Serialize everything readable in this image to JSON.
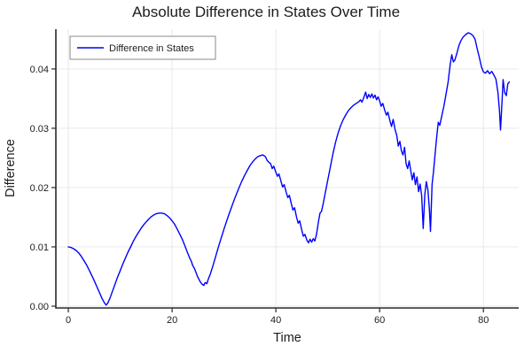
{
  "title": "Absolute Difference in States Over Time",
  "colors": {
    "line": "#0000ff",
    "grid": "#e6e6e6",
    "axis": "#2a2a2e",
    "text": "#1c1c1c",
    "background": "#ffffff",
    "legend_border": "#8a8a8a",
    "legend_fill": "#ffffff"
  },
  "chart_data": {
    "type": "line",
    "title": "Absolute Difference in States Over Time",
    "xlabel": "Time",
    "ylabel": "Difference",
    "xlim": [
      -2.4,
      86.8
    ],
    "ylim": [
      -0.0003,
      0.0467
    ],
    "grid": true,
    "x_ticks": {
      "values": [
        0,
        20,
        40,
        60,
        80
      ],
      "labels": [
        "0",
        "20",
        "40",
        "60",
        "80"
      ]
    },
    "y_ticks": {
      "values": [
        0,
        0.01,
        0.02,
        0.03,
        0.04
      ],
      "labels": [
        "0.00",
        "0.01",
        "0.02",
        "0.03",
        "0.04"
      ]
    },
    "legend": {
      "position": "top-left",
      "entries": [
        {
          "label": "Difference in States",
          "color": "#0000ff"
        }
      ]
    },
    "series": [
      {
        "name": "Difference in States",
        "color": "#0000ff",
        "points": [
          [
            0,
            0.01
          ],
          [
            0.5,
            0.0099
          ],
          [
            1,
            0.0097
          ],
          [
            1.5,
            0.0094
          ],
          [
            2,
            0.009
          ],
          [
            2.5,
            0.0084
          ],
          [
            3,
            0.0077
          ],
          [
            3.5,
            0.007
          ],
          [
            4,
            0.0061
          ],
          [
            4.5,
            0.0052
          ],
          [
            5,
            0.0043
          ],
          [
            5.5,
            0.0033
          ],
          [
            6,
            0.0023
          ],
          [
            6.5,
            0.0013
          ],
          [
            7,
            0.0005
          ],
          [
            7.3,
            0.0002
          ],
          [
            7.6,
            0.0005
          ],
          [
            8,
            0.0013
          ],
          [
            8.5,
            0.0025
          ],
          [
            9,
            0.0037
          ],
          [
            9.5,
            0.0049
          ],
          [
            10,
            0.006
          ],
          [
            10.5,
            0.0071
          ],
          [
            11,
            0.0081
          ],
          [
            11.5,
            0.0091
          ],
          [
            12,
            0.01
          ],
          [
            12.5,
            0.0109
          ],
          [
            13,
            0.0117
          ],
          [
            13.5,
            0.0124
          ],
          [
            14,
            0.0131
          ],
          [
            14.5,
            0.0137
          ],
          [
            15,
            0.0142
          ],
          [
            15.5,
            0.0147
          ],
          [
            16,
            0.0151
          ],
          [
            16.5,
            0.0154
          ],
          [
            17,
            0.0156
          ],
          [
            17.5,
            0.0157
          ],
          [
            18,
            0.0157
          ],
          [
            18.5,
            0.0156
          ],
          [
            19,
            0.0153
          ],
          [
            19.5,
            0.0149
          ],
          [
            20,
            0.0144
          ],
          [
            20.5,
            0.0138
          ],
          [
            21,
            0.013
          ],
          [
            21.5,
            0.0121
          ],
          [
            22,
            0.0112
          ],
          [
            22.5,
            0.0101
          ],
          [
            23,
            0.009
          ],
          [
            23.4,
            0.0081
          ],
          [
            23.7,
            0.0076
          ],
          [
            24,
            0.0068
          ],
          [
            24.3,
            0.0064
          ],
          [
            24.6,
            0.0057
          ],
          [
            24.9,
            0.005
          ],
          [
            25.2,
            0.0045
          ],
          [
            25.5,
            0.004
          ],
          [
            25.8,
            0.0037
          ],
          [
            26.1,
            0.0035
          ],
          [
            26.4,
            0.004
          ],
          [
            26.7,
            0.0038
          ],
          [
            27,
            0.0046
          ],
          [
            27.4,
            0.0055
          ],
          [
            27.8,
            0.0066
          ],
          [
            28.2,
            0.0078
          ],
          [
            28.6,
            0.009
          ],
          [
            29,
            0.0102
          ],
          [
            29.5,
            0.0116
          ],
          [
            30,
            0.013
          ],
          [
            30.5,
            0.0143
          ],
          [
            31,
            0.0156
          ],
          [
            31.5,
            0.0168
          ],
          [
            32,
            0.018
          ],
          [
            32.5,
            0.0191
          ],
          [
            33,
            0.0202
          ],
          [
            33.5,
            0.0212
          ],
          [
            34,
            0.0221
          ],
          [
            34.5,
            0.0229
          ],
          [
            35,
            0.0237
          ],
          [
            35.5,
            0.0243
          ],
          [
            36,
            0.0248
          ],
          [
            36.5,
            0.0252
          ],
          [
            37,
            0.0254
          ],
          [
            37.5,
            0.0255
          ],
          [
            38,
            0.0252
          ],
          [
            38.3,
            0.0246
          ],
          [
            38.6,
            0.0243
          ],
          [
            39,
            0.024
          ],
          [
            39.3,
            0.0232
          ],
          [
            39.6,
            0.0236
          ],
          [
            40,
            0.0226
          ],
          [
            40.3,
            0.0219
          ],
          [
            40.6,
            0.0223
          ],
          [
            41,
            0.021
          ],
          [
            41.3,
            0.0201
          ],
          [
            41.6,
            0.0205
          ],
          [
            42,
            0.0192
          ],
          [
            42.3,
            0.0183
          ],
          [
            42.6,
            0.0187
          ],
          [
            43,
            0.0172
          ],
          [
            43.3,
            0.0162
          ],
          [
            43.6,
            0.0166
          ],
          [
            44,
            0.015
          ],
          [
            44.3,
            0.014
          ],
          [
            44.6,
            0.0144
          ],
          [
            45,
            0.0128
          ],
          [
            45.3,
            0.0118
          ],
          [
            45.6,
            0.0121
          ],
          [
            46,
            0.0111
          ],
          [
            46.3,
            0.0107
          ],
          [
            46.6,
            0.0113
          ],
          [
            46.9,
            0.0108
          ],
          [
            47.2,
            0.0114
          ],
          [
            47.5,
            0.011
          ],
          [
            47.8,
            0.012
          ],
          [
            48,
            0.013
          ],
          [
            48.2,
            0.0142
          ],
          [
            48.5,
            0.0157
          ],
          [
            48.8,
            0.016
          ],
          [
            49.1,
            0.0172
          ],
          [
            49.5,
            0.019
          ],
          [
            50,
            0.0212
          ],
          [
            50.5,
            0.0235
          ],
          [
            51,
            0.0257
          ],
          [
            51.5,
            0.0276
          ],
          [
            52,
            0.0292
          ],
          [
            52.5,
            0.0305
          ],
          [
            53,
            0.0315
          ],
          [
            53.5,
            0.0323
          ],
          [
            54,
            0.033
          ],
          [
            54.5,
            0.0335
          ],
          [
            55,
            0.0339
          ],
          [
            55.5,
            0.0342
          ],
          [
            56,
            0.0345
          ],
          [
            56.3,
            0.0348
          ],
          [
            56.6,
            0.0344
          ],
          [
            57,
            0.0353
          ],
          [
            57.3,
            0.0361
          ],
          [
            57.6,
            0.035
          ],
          [
            57.9,
            0.0357
          ],
          [
            58.2,
            0.0352
          ],
          [
            58.5,
            0.0358
          ],
          [
            58.8,
            0.0351
          ],
          [
            59.1,
            0.0356
          ],
          [
            59.4,
            0.0348
          ],
          [
            59.7,
            0.0353
          ],
          [
            60,
            0.0346
          ],
          [
            60.3,
            0.0337
          ],
          [
            60.6,
            0.0342
          ],
          [
            61,
            0.033
          ],
          [
            61.3,
            0.0322
          ],
          [
            61.6,
            0.0327
          ],
          [
            62,
            0.0312
          ],
          [
            62.3,
            0.0303
          ],
          [
            62.6,
            0.0315
          ],
          [
            63,
            0.0297
          ],
          [
            63.3,
            0.0288
          ],
          [
            63.6,
            0.027
          ],
          [
            63.9,
            0.0278
          ],
          [
            64.2,
            0.0262
          ],
          [
            64.5,
            0.0255
          ],
          [
            64.8,
            0.0268
          ],
          [
            65.1,
            0.024
          ],
          [
            65.4,
            0.0232
          ],
          [
            65.7,
            0.0245
          ],
          [
            66,
            0.0228
          ],
          [
            66.3,
            0.0213
          ],
          [
            66.6,
            0.0225
          ],
          [
            66.9,
            0.0205
          ],
          [
            67.2,
            0.0218
          ],
          [
            67.5,
            0.0193
          ],
          [
            67.8,
            0.0206
          ],
          [
            68.1,
            0.0186
          ],
          [
            68.4,
            0.0131
          ],
          [
            68.7,
            0.0188
          ],
          [
            69,
            0.021
          ],
          [
            69.3,
            0.0196
          ],
          [
            69.6,
            0.0163
          ],
          [
            69.8,
            0.0126
          ],
          [
            70.1,
            0.0205
          ],
          [
            70.4,
            0.0228
          ],
          [
            70.7,
            0.0258
          ],
          [
            71,
            0.0285
          ],
          [
            71.3,
            0.031
          ],
          [
            71.6,
            0.0305
          ],
          [
            72,
            0.0322
          ],
          [
            72.4,
            0.0338
          ],
          [
            72.8,
            0.0358
          ],
          [
            73.2,
            0.0378
          ],
          [
            73.6,
            0.0408
          ],
          [
            73.9,
            0.0424
          ],
          [
            74.2,
            0.0412
          ],
          [
            74.5,
            0.0415
          ],
          [
            74.9,
            0.0427
          ],
          [
            75.3,
            0.044
          ],
          [
            75.7,
            0.0448
          ],
          [
            76.1,
            0.0454
          ],
          [
            76.6,
            0.0458
          ],
          [
            77.1,
            0.0461
          ],
          [
            77.6,
            0.0459
          ],
          [
            78,
            0.0456
          ],
          [
            78.4,
            0.045
          ],
          [
            78.8,
            0.0434
          ],
          [
            79.2,
            0.042
          ],
          [
            79.6,
            0.0404
          ],
          [
            80,
            0.0395
          ],
          [
            80.4,
            0.0393
          ],
          [
            80.8,
            0.0397
          ],
          [
            81.2,
            0.0392
          ],
          [
            81.6,
            0.0396
          ],
          [
            82,
            0.039
          ],
          [
            82.4,
            0.0383
          ],
          [
            82.8,
            0.036
          ],
          [
            83.1,
            0.033
          ],
          [
            83.3,
            0.0297
          ],
          [
            83.6,
            0.0348
          ],
          [
            83.8,
            0.0382
          ],
          [
            84.1,
            0.036
          ],
          [
            84.4,
            0.0355
          ],
          [
            84.7,
            0.0375
          ],
          [
            85,
            0.0378
          ]
        ]
      }
    ]
  }
}
